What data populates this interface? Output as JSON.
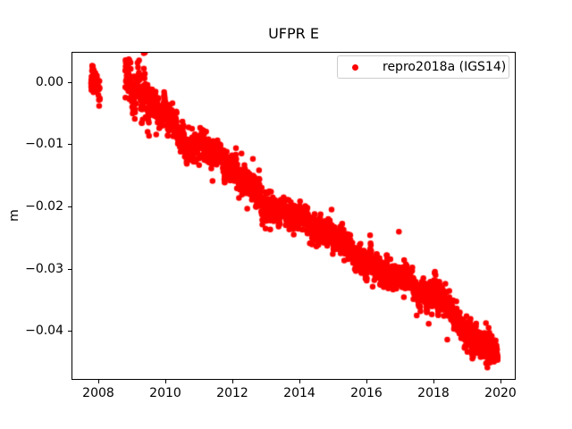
{
  "figure": {
    "background": "#ffffff",
    "text_color": "#000000",
    "spine_color": "#000000"
  },
  "chart_data": {
    "type": "scatter",
    "title": "UFPR E",
    "xlabel": "",
    "ylabel": "m",
    "xlim": [
      2007.2,
      2020.453
    ],
    "ylim": [
      -0.04777,
      0.004892
    ],
    "grid": false,
    "xticks": {
      "values": [
        2008,
        2010,
        2012,
        2014,
        2016,
        2018,
        2020
      ],
      "labels": [
        "2008",
        "2010",
        "2012",
        "2014",
        "2016",
        "2018",
        "2020"
      ]
    },
    "yticks": {
      "values": [
        0.0,
        -0.01,
        -0.02,
        -0.03,
        -0.04
      ],
      "labels": [
        "0.00",
        "−0.01",
        "−0.02",
        "−0.03",
        "−0.04"
      ]
    },
    "legend": {
      "position": "upper right",
      "border_color": "#cccccc",
      "background": "rgba(255,255,255,0.8)",
      "entries": [
        {
          "label": "repro2018a (IGS14)",
          "color": "#ff0000",
          "marker": "dot"
        }
      ]
    },
    "series": [
      {
        "name": "repro2018a (IGS14)",
        "color": "#ff0000",
        "marker_diameter_px": 6.5,
        "segments": [
          {
            "x_start": 2007.78,
            "x_end": 2008.05,
            "n_points": 60
          },
          {
            "x_start": 2008.8,
            "x_end": 2019.92,
            "n_points": 3050
          }
        ],
        "trend_x": [
          2007.78,
          2008.05,
          2008.8,
          2009.0,
          2009.25,
          2009.5,
          2010.0,
          2010.5,
          2011.0,
          2011.4,
          2012.0,
          2012.5,
          2013.0,
          2013.5,
          2014.0,
          2014.5,
          2015.0,
          2015.5,
          2016.0,
          2016.5,
          2017.0,
          2017.5,
          2018.0,
          2018.5,
          2019.0,
          2019.3,
          2019.92
        ],
        "trend_y_m": [
          0.0009,
          0.0007,
          0.0005,
          -0.0005,
          -0.0018,
          -0.003,
          -0.0046,
          -0.009,
          -0.01,
          -0.0112,
          -0.0148,
          -0.016,
          -0.0195,
          -0.0209,
          -0.0216,
          -0.0235,
          -0.025,
          -0.027,
          -0.0293,
          -0.03,
          -0.031,
          -0.033,
          -0.034,
          -0.0366,
          -0.0405,
          -0.042,
          -0.0426
        ],
        "noise": {
          "white_sigma_m": 0.0009,
          "ar1_rho": 0.9,
          "ar1_innovation_m": 0.0004,
          "outlier_rate": 0.008,
          "outlier_max_m": 0.005,
          "seed": 1337
        },
        "spread_boost": [
          {
            "x_start": 2008.8,
            "x_end": 2009.55,
            "factor": 1.6
          }
        ]
      }
    ]
  }
}
